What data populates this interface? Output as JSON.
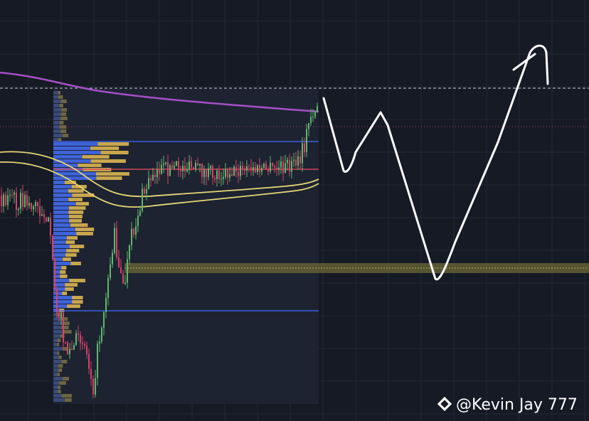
{
  "watermark": {
    "text": "@Kevin Jay 777"
  }
}
